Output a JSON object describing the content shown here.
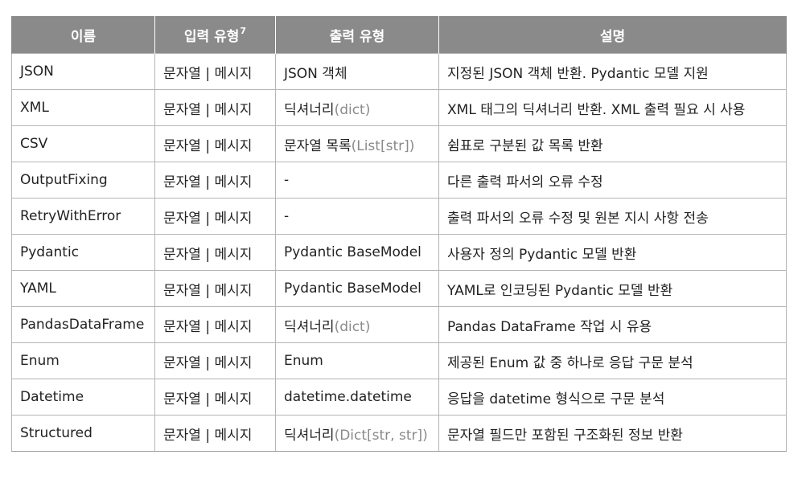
{
  "header": {
    "col1": "이름",
    "col2": "입력 유형",
    "col2_footnote": "7",
    "col3": "출력 유형",
    "col4": "설명"
  },
  "rows": [
    {
      "name": "JSON",
      "input": "문자열 | 메시지",
      "output": "JSON 객체",
      "output_paren": "",
      "desc": "지정된 JSON 객체 반환. Pydantic 모델 지원"
    },
    {
      "name": "XML",
      "input": "문자열 | 메시지",
      "output": "딕셔너리",
      "output_paren": "(dict)",
      "desc": "XML 태그의 딕셔너리 반환. XML 출력 필요 시 사용"
    },
    {
      "name": "CSV",
      "input": "문자열 | 메시지",
      "output": "문자열 목록",
      "output_paren": "(List[str])",
      "desc": "쉼표로 구분된 값 목록 반환"
    },
    {
      "name": "OutputFixing",
      "input": "문자열 | 메시지",
      "output": "-",
      "output_paren": "",
      "desc": "다른 출력 파서의 오류 수정"
    },
    {
      "name": "RetryWithError",
      "input": "문자열 | 메시지",
      "output": "-",
      "output_paren": "",
      "desc": "출력 파서의 오류 수정 및 원본 지시 사항 전송"
    },
    {
      "name": "Pydantic",
      "input": "문자열 | 메시지",
      "output": "Pydantic BaseModel",
      "output_paren": "",
      "desc": "사용자 정의 Pydantic 모델 반환"
    },
    {
      "name": "YAML",
      "input": "문자열 | 메시지",
      "output": "Pydantic BaseModel",
      "output_paren": "",
      "desc": "YAML로 인코딩된 Pydantic 모델 반환"
    },
    {
      "name": "PandasDataFrame",
      "input": "문자열 | 메시지",
      "output": "딕셔너리",
      "output_paren": "(dict)",
      "desc": "Pandas DataFrame 작업 시 유용"
    },
    {
      "name": "Enum",
      "input": "문자열 | 메시지",
      "output": "Enum",
      "output_paren": "",
      "desc": "제공된 Enum 값 중 하나로 응답 구문 분석"
    },
    {
      "name": "Datetime",
      "input": "문자열 | 메시지",
      "output": "datetime.datetime",
      "output_paren": "",
      "desc": "응답을 datetime 형식으로 구문 분석"
    },
    {
      "name": "Structured",
      "input": "문자열 | 메시지",
      "output": "딕셔너리",
      "output_paren": "(Dict[str, str])",
      "desc": "문자열 필드만 포함된 구조화된 정보 반환"
    }
  ],
  "colors": {
    "header_bg": "#8a8a8a",
    "header_text": "#ffffff",
    "border": "#b5b5b5",
    "paren_text": "#8a8a8a"
  }
}
